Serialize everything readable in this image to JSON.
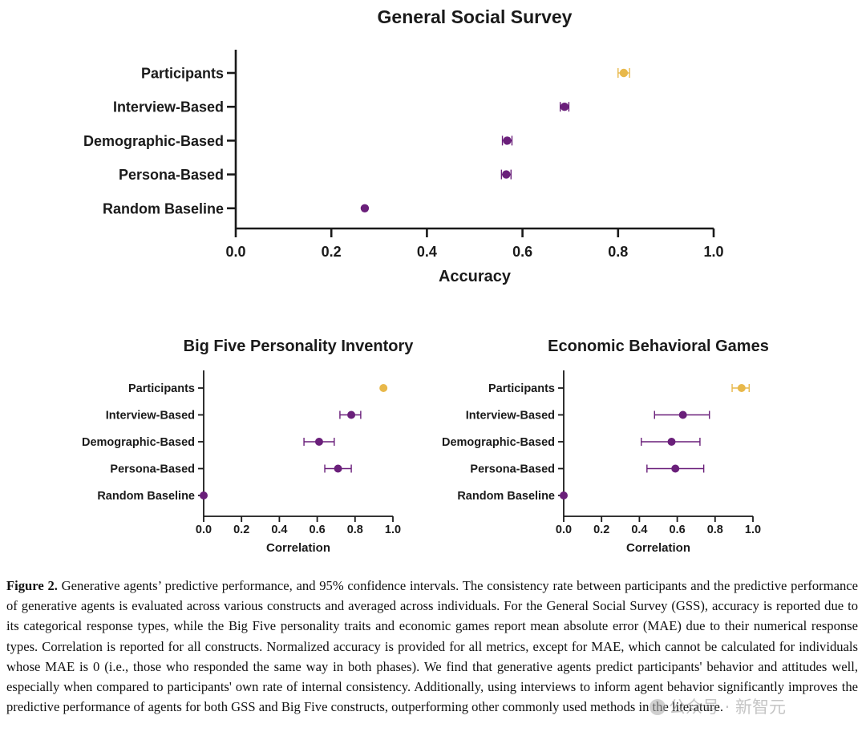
{
  "colors": {
    "participants": "#e8b84a",
    "agents": "#6a1f7a",
    "axis": "#1a1a1a"
  },
  "chart_data": [
    {
      "type": "scatter",
      "title": "General Social Survey",
      "xlabel": "Accuracy",
      "xlim": [
        0,
        1
      ],
      "xticks": [
        "0.0",
        "0.2",
        "0.4",
        "0.6",
        "0.8",
        "1.0"
      ],
      "categories": [
        "Participants",
        "Interview-Based",
        "Demographic-Based",
        "Persona-Based",
        "Random Baseline"
      ],
      "values": [
        0.812,
        0.688,
        0.568,
        0.566,
        0.27
      ],
      "ci_low": [
        0.8,
        0.679,
        0.558,
        0.556,
        0.27
      ],
      "ci_high": [
        0.824,
        0.697,
        0.578,
        0.576,
        0.27
      ],
      "grid": false,
      "legend": "none"
    },
    {
      "type": "scatter",
      "title": "Big Five Personality Inventory",
      "xlabel": "Correlation",
      "xlim": [
        0,
        1
      ],
      "xticks": [
        "0.0",
        "0.2",
        "0.4",
        "0.6",
        "0.8",
        "1.0"
      ],
      "categories": [
        "Participants",
        "Interview-Based",
        "Demographic-Based",
        "Persona-Based",
        "Random Baseline"
      ],
      "values": [
        0.95,
        0.78,
        0.61,
        0.71,
        0.0
      ],
      "ci_low": [
        0.95,
        0.72,
        0.53,
        0.64,
        0.0
      ],
      "ci_high": [
        0.95,
        0.83,
        0.69,
        0.78,
        0.0
      ],
      "grid": false,
      "legend": "none"
    },
    {
      "type": "scatter",
      "title": "Economic Behavioral Games",
      "xlabel": "Correlation",
      "xlim": [
        0,
        1
      ],
      "xticks": [
        "0.0",
        "0.2",
        "0.4",
        "0.6",
        "0.8",
        "1.0"
      ],
      "categories": [
        "Participants",
        "Interview-Based",
        "Demographic-Based",
        "Persona-Based",
        "Random Baseline"
      ],
      "values": [
        0.94,
        0.63,
        0.57,
        0.59,
        0.0
      ],
      "ci_low": [
        0.89,
        0.48,
        0.41,
        0.44,
        0.0
      ],
      "ci_high": [
        0.98,
        0.77,
        0.72,
        0.74,
        0.0
      ],
      "grid": false,
      "legend": "none"
    }
  ],
  "caption": {
    "label": "Figure 2.",
    "text": " Generative agents’ predictive performance, and 95% confidence intervals. The consistency rate between participants and the predictive performance of generative agents is evaluated across various constructs and averaged across individuals. For the General Social Survey (GSS), accuracy is reported due to its categorical response types, while the Big Five personality traits and economic games report mean absolute error (MAE) due to their numerical response types. Correlation is reported for all constructs. Normalized accuracy is provided for all metrics, except for MAE, which cannot be calculated for individuals whose MAE is 0 (i.e., those who responded the same way in both phases). We find that generative agents predict participants' behavior and attitudes well, especially when compared to participants' own rate of internal consistency. Additionally, using interviews to inform agent behavior significantly improves the predictive performance of agents for both GSS and Big Five constructs, outperforming other commonly used methods in the literature."
  },
  "watermark": {
    "icon": "wechat-icon",
    "text": "公众号 · 新智元"
  }
}
